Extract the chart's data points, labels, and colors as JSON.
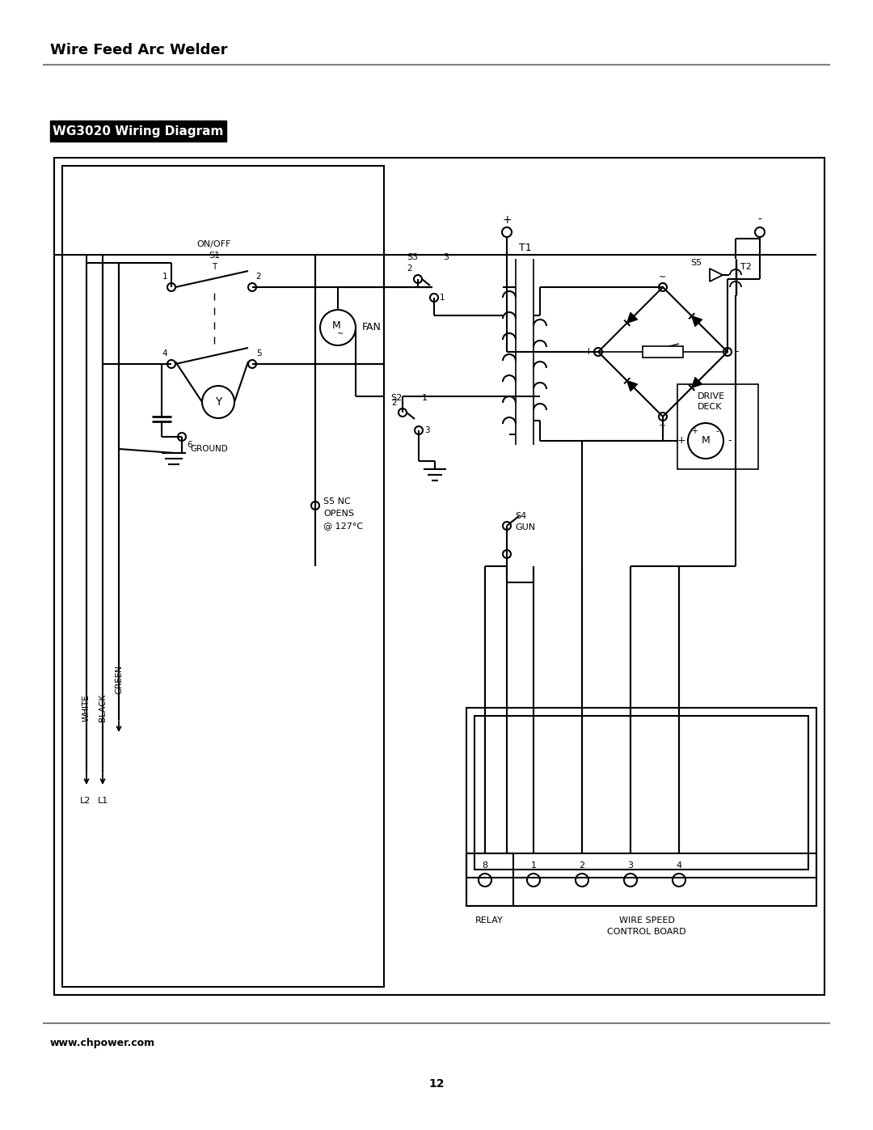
{
  "title_header": "Wire Feed Arc Welder",
  "title_diagram": "WG3020 Wiring Diagram",
  "footer_url": "www.chpower.com",
  "page_number": "12",
  "bg_color": "#ffffff",
  "line_color": "#000000",
  "header_line_color": "#808080",
  "lw": 1.5
}
